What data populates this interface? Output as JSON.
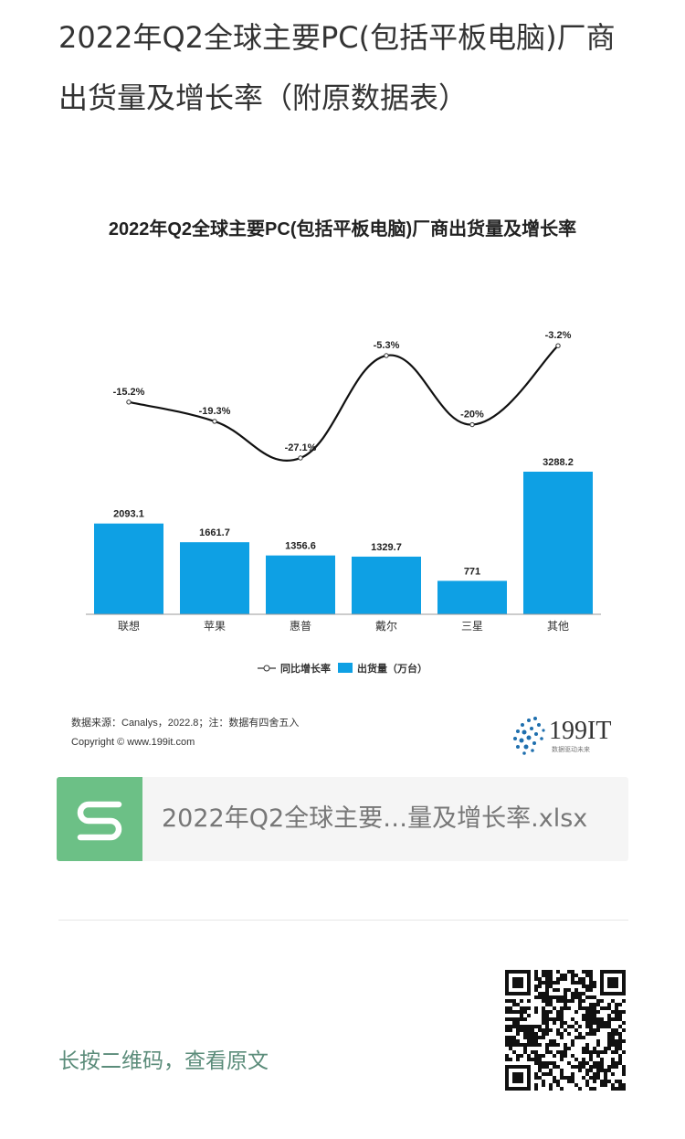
{
  "article": {
    "title": "2022年Q2全球主要PC(包括平板电脑)厂商出货量及增长率（附原数据表）"
  },
  "chart_data": {
    "type": "bar",
    "title": "2022年Q2全球主要PC(包括平板电脑)厂商出货量及增长率",
    "categories": [
      "联想",
      "苹果",
      "惠普",
      "戴尔",
      "三星",
      "其他"
    ],
    "series": [
      {
        "name": "出货量（万台）",
        "type": "bar",
        "color": "#0ea0e4",
        "values": [
          2093.1,
          1661.7,
          1356.6,
          1329.7,
          771,
          3288.2
        ],
        "labels": [
          "2093.1",
          "1661.7",
          "1356.6",
          "1329.7",
          "771",
          "3288.2"
        ]
      },
      {
        "name": "同比增长率",
        "type": "line",
        "color": "#111111",
        "values": [
          -15.2,
          -19.3,
          -27.1,
          -5.3,
          -20,
          -3.2
        ],
        "labels": [
          "-15.2%",
          "-19.3%",
          "-27.1%",
          "-5.3%",
          "-20%",
          "-3.2%"
        ]
      }
    ],
    "legend_position": "bottom",
    "source": "数据来源：Canalys，2022.8；注：数据有四舍五入",
    "copyright": "Copyright © www.199it.com",
    "brand": {
      "name": "199IT",
      "tagline": "数据驱动未来"
    },
    "grid": false
  },
  "file": {
    "name": "2022年Q2全球主要…量及增长率.xlsx"
  },
  "footer": {
    "qr_hint": "长按二维码，查看原文"
  },
  "colors": {
    "bar": "#0ea0e4",
    "file_icon": "#6cc086",
    "hint": "#5b8c7a"
  }
}
